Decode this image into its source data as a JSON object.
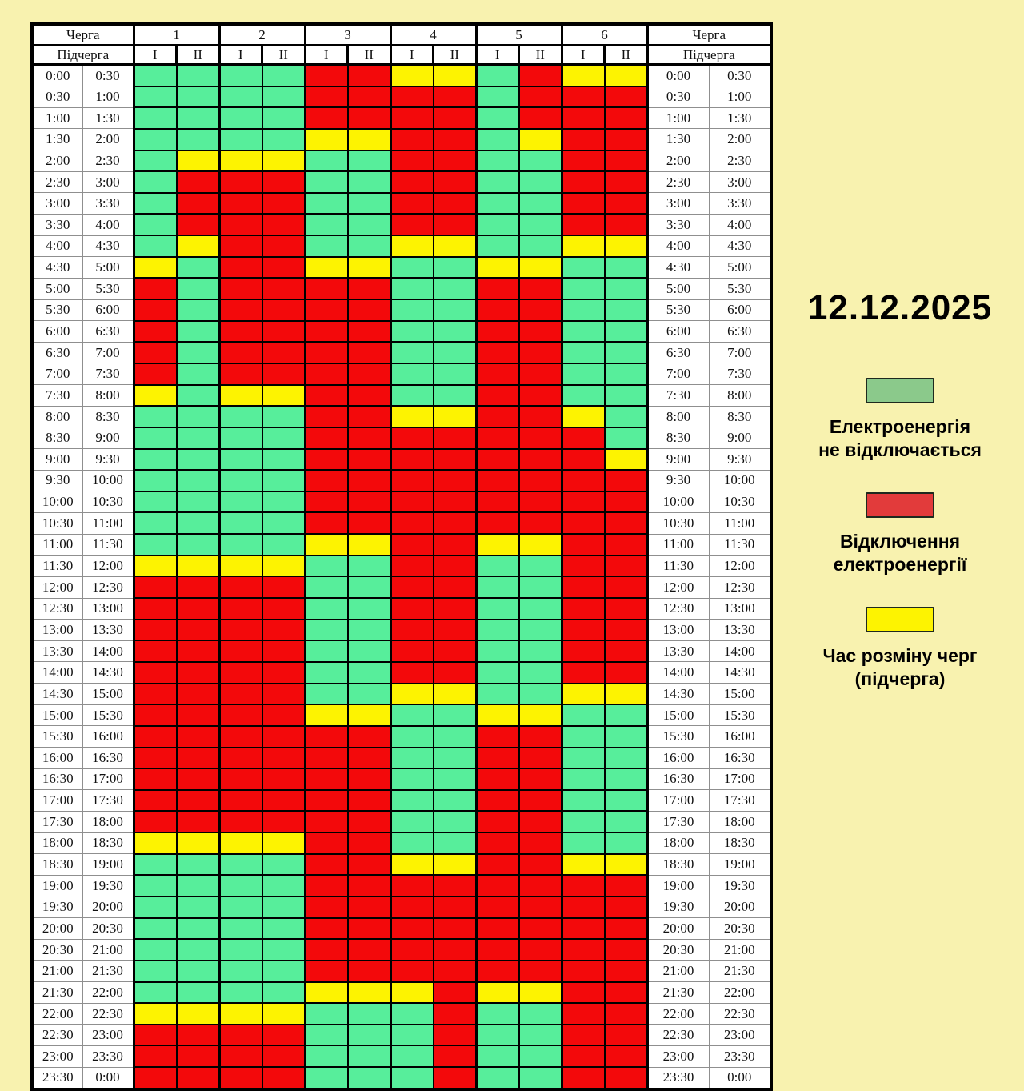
{
  "page": {
    "background": "#f8f2af"
  },
  "chart_data": {
    "type": "heatmap",
    "date": "12.12.2025",
    "header": {
      "queue_label": "Черга",
      "subqueue_label": "Підчерга"
    },
    "columns": {
      "queues": [
        "1",
        "2",
        "3",
        "4",
        "5",
        "6"
      ],
      "subqueues": [
        "I",
        "II"
      ]
    },
    "cell_codes": {
      "G": "Електроенергія не відключається",
      "R": "Відключення електроенергії",
      "Y": "Час розміну черг (підчерга)"
    },
    "colors": {
      "G": "#57ee9b",
      "R": "#f3090b",
      "Y": "#fdf301"
    },
    "time_slots": [
      [
        "0:00",
        "0:30"
      ],
      [
        "0:30",
        "1:00"
      ],
      [
        "1:00",
        "1:30"
      ],
      [
        "1:30",
        "2:00"
      ],
      [
        "2:00",
        "2:30"
      ],
      [
        "2:30",
        "3:00"
      ],
      [
        "3:00",
        "3:30"
      ],
      [
        "3:30",
        "4:00"
      ],
      [
        "4:00",
        "4:30"
      ],
      [
        "4:30",
        "5:00"
      ],
      [
        "5:00",
        "5:30"
      ],
      [
        "5:30",
        "6:00"
      ],
      [
        "6:00",
        "6:30"
      ],
      [
        "6:30",
        "7:00"
      ],
      [
        "7:00",
        "7:30"
      ],
      [
        "7:30",
        "8:00"
      ],
      [
        "8:00",
        "8:30"
      ],
      [
        "8:30",
        "9:00"
      ],
      [
        "9:00",
        "9:30"
      ],
      [
        "9:30",
        "10:00"
      ],
      [
        "10:00",
        "10:30"
      ],
      [
        "10:30",
        "11:00"
      ],
      [
        "11:00",
        "11:30"
      ],
      [
        "11:30",
        "12:00"
      ],
      [
        "12:00",
        "12:30"
      ],
      [
        "12:30",
        "13:00"
      ],
      [
        "13:00",
        "13:30"
      ],
      [
        "13:30",
        "14:00"
      ],
      [
        "14:00",
        "14:30"
      ],
      [
        "14:30",
        "15:00"
      ],
      [
        "15:00",
        "15:30"
      ],
      [
        "15:30",
        "16:00"
      ],
      [
        "16:00",
        "16:30"
      ],
      [
        "16:30",
        "17:00"
      ],
      [
        "17:00",
        "17:30"
      ],
      [
        "17:30",
        "18:00"
      ],
      [
        "18:00",
        "18:30"
      ],
      [
        "18:30",
        "19:00"
      ],
      [
        "19:00",
        "19:30"
      ],
      [
        "19:30",
        "20:00"
      ],
      [
        "20:00",
        "20:30"
      ],
      [
        "20:30",
        "21:00"
      ],
      [
        "21:00",
        "21:30"
      ],
      [
        "21:30",
        "22:00"
      ],
      [
        "22:00",
        "22:30"
      ],
      [
        "22:30",
        "23:00"
      ],
      [
        "23:00",
        "23:30"
      ],
      [
        "23:30",
        "0:00"
      ]
    ],
    "grid": [
      "GGGGRRYYGRYY",
      "GGGGRRRRGRRR",
      "GGGGRRRRGRRR",
      "GGGGYYRRGYRR",
      "GYYYGGRRGGRR",
      "GRRRGGRRGGRR",
      "GRRRGGRRGGRR",
      "GRRRGGRRGGRR",
      "GYRRGGYYGGYY",
      "YGRRYYGGYYGG",
      "RGRRRRGGRRGG",
      "RGRRRRGGRRGG",
      "RGRRRRGGRRGG",
      "RGRRRRGGRRGG",
      "RGRRRRGGRRGG",
      "YGYYRRGGRRGG",
      "GGGGRRYYRRYG",
      "GGGGRRRRRRRG",
      "GGGGRRRRRRRY",
      "GGGGRRRRRRRR",
      "GGGGRRRRRRRR",
      "GGGGRRRRRRRR",
      "GGGGYYRRYYRR",
      "YYYYGGRRGGRR",
      "RRRRGGRRGGRR",
      "RRRRGGRRGGRR",
      "RRRRGGRRGGRR",
      "RRRRGGRRGGRR",
      "RRRRGGRRGGRR",
      "RRRRGGYYGGYY",
      "RRRRYYGGYYGG",
      "RRRRRRGGRRGG",
      "RRRRRRGGRRGG",
      "RRRRRRGGRRGG",
      "RRRRRRGGRRGG",
      "RRRRRRGGRRGG",
      "YYYYRRGGRRGG",
      "GGGGRRYYRRYY",
      "GGGGRRRRRRRR",
      "GGGGRRRRRRRR",
      "GGGGRRRRRRRR",
      "GGGGRRRRRRRR",
      "GGGGRRRRRRRR",
      "GGGGYYYRYYRR",
      "YYYYGGGRGGRR",
      "RRRRGGGRGGRR",
      "RRRRGGGRGGRR",
      "RRRRGGGRGGRR"
    ],
    "legend": [
      {
        "name": "power-on",
        "color": "#8bc98b",
        "lines": [
          "Електроенергія",
          "не відключається"
        ]
      },
      {
        "name": "power-off",
        "color": "#e23b3b",
        "lines": [
          "Відключення",
          "електроенергії"
        ]
      },
      {
        "name": "queue-switch",
        "color": "#fdf301",
        "lines": [
          "Час розміну черг",
          "(підчерга)"
        ]
      }
    ]
  }
}
